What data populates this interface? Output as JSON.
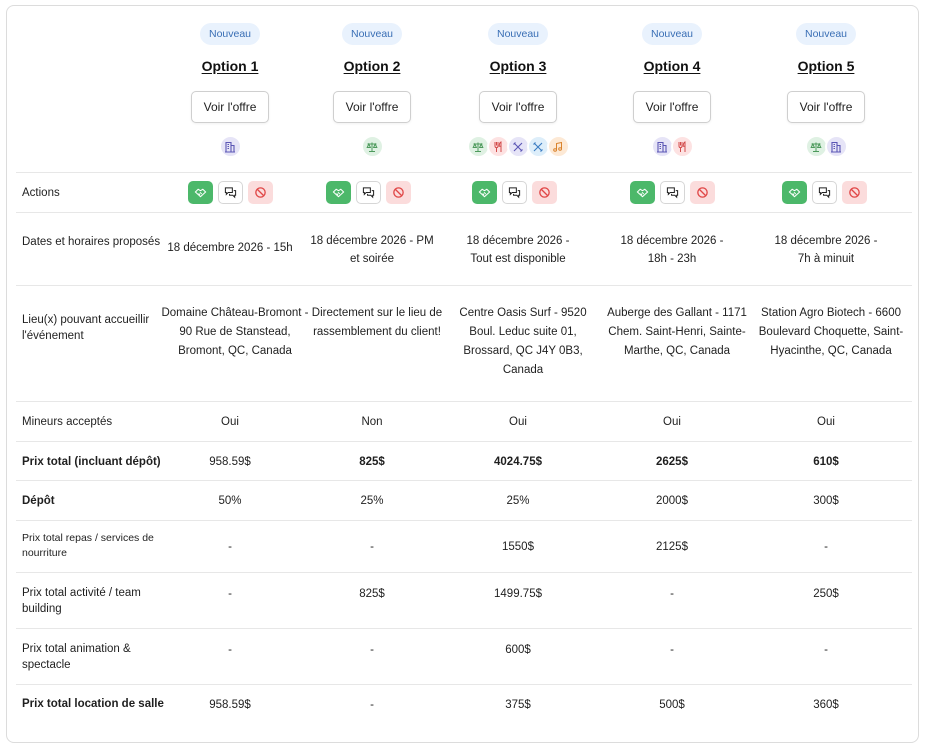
{
  "options": [
    {
      "badge": "Nouveau",
      "title": "Option 1",
      "button": "Voir l'offre",
      "tags": [
        {
          "icon": "building-icon",
          "color": "purple"
        }
      ],
      "dates": "18 décembre 2026 - 15h",
      "lieu": "Domaine Château-Bromont - 90 Rue de Stanstead, Bromont, QC, Canada",
      "mineurs": "Oui",
      "prix_total": "958.59$",
      "depot": "50%",
      "repas": "-",
      "activite": "-",
      "animation": "-",
      "location": "958.59$"
    },
    {
      "badge": "Nouveau",
      "title": "Option 2",
      "button": "Voir l'offre",
      "tags": [
        {
          "icon": "scale-icon",
          "color": "green"
        }
      ],
      "dates": "18 décembre 2026 - PM et soirée",
      "lieu": "Directement sur le lieu de rassemblement du client!",
      "mineurs": "Non",
      "prix_total": "825$",
      "depot": "25%",
      "repas": "-",
      "activite": "825$",
      "animation": "-",
      "location": "-"
    },
    {
      "badge": "Nouveau",
      "title": "Option 3",
      "button": "Voir l'offre",
      "tags": [
        {
          "icon": "scale-icon",
          "color": "green"
        },
        {
          "icon": "utensils-icon",
          "color": "red"
        },
        {
          "icon": "tools-icon",
          "color": "purple"
        },
        {
          "icon": "tools-icon",
          "color": "blue"
        },
        {
          "icon": "music-icon",
          "color": "orange"
        }
      ],
      "dates": "18 décembre 2026 - Tout est disponible",
      "lieu": "Centre Oasis Surf - 9520 Boul. Leduc suite 01, Brossard, QC J4Y 0B3, Canada",
      "mineurs": "Oui",
      "prix_total": "4024.75$",
      "depot": "25%",
      "repas": "1550$",
      "activite": "1499.75$",
      "animation": "600$",
      "location": "375$"
    },
    {
      "badge": "Nouveau",
      "title": "Option 4",
      "button": "Voir l'offre",
      "tags": [
        {
          "icon": "building-icon",
          "color": "purple"
        },
        {
          "icon": "utensils-icon",
          "color": "red"
        }
      ],
      "dates": "18 décembre 2026 - 18h - 23h",
      "lieu": "Auberge des Gallant - 1171 Chem. Saint-Henri, Sainte-Marthe, QC, Canada",
      "mineurs": "Oui",
      "prix_total": "2625$",
      "depot": "2000$",
      "repas": "2125$",
      "activite": "-",
      "animation": "-",
      "location": "500$"
    },
    {
      "badge": "Nouveau",
      "title": "Option 5",
      "button": "Voir l'offre",
      "tags": [
        {
          "icon": "scale-icon",
          "color": "green"
        },
        {
          "icon": "building-icon",
          "color": "purple"
        }
      ],
      "dates": "18 décembre 2026 - 7h à minuit",
      "lieu": "Station Agro Biotech - 6600 Boulevard Choquette, Saint-Hyacinthe, QC, Canada",
      "mineurs": "Oui",
      "prix_total": "610$",
      "depot": "300$",
      "repas": "-",
      "activite": "250$",
      "animation": "-",
      "location": "360$"
    }
  ],
  "rows": {
    "actions": "Actions",
    "dates": "Dates et horaires proposés",
    "lieu": "Lieu(x) pouvant accueillir l'événement",
    "mineurs": "Mineurs acceptés",
    "prix_total": "Prix total (incluant dépôt)",
    "depot": "Dépôt",
    "repas": "Prix total repas / services de nourriture",
    "activite": "Prix total activité / team building",
    "animation": "Prix total animation & spectacle",
    "location": "Prix total location de salle"
  },
  "action_icons": [
    "handshake-icon",
    "chat-icon",
    "block-icon"
  ]
}
